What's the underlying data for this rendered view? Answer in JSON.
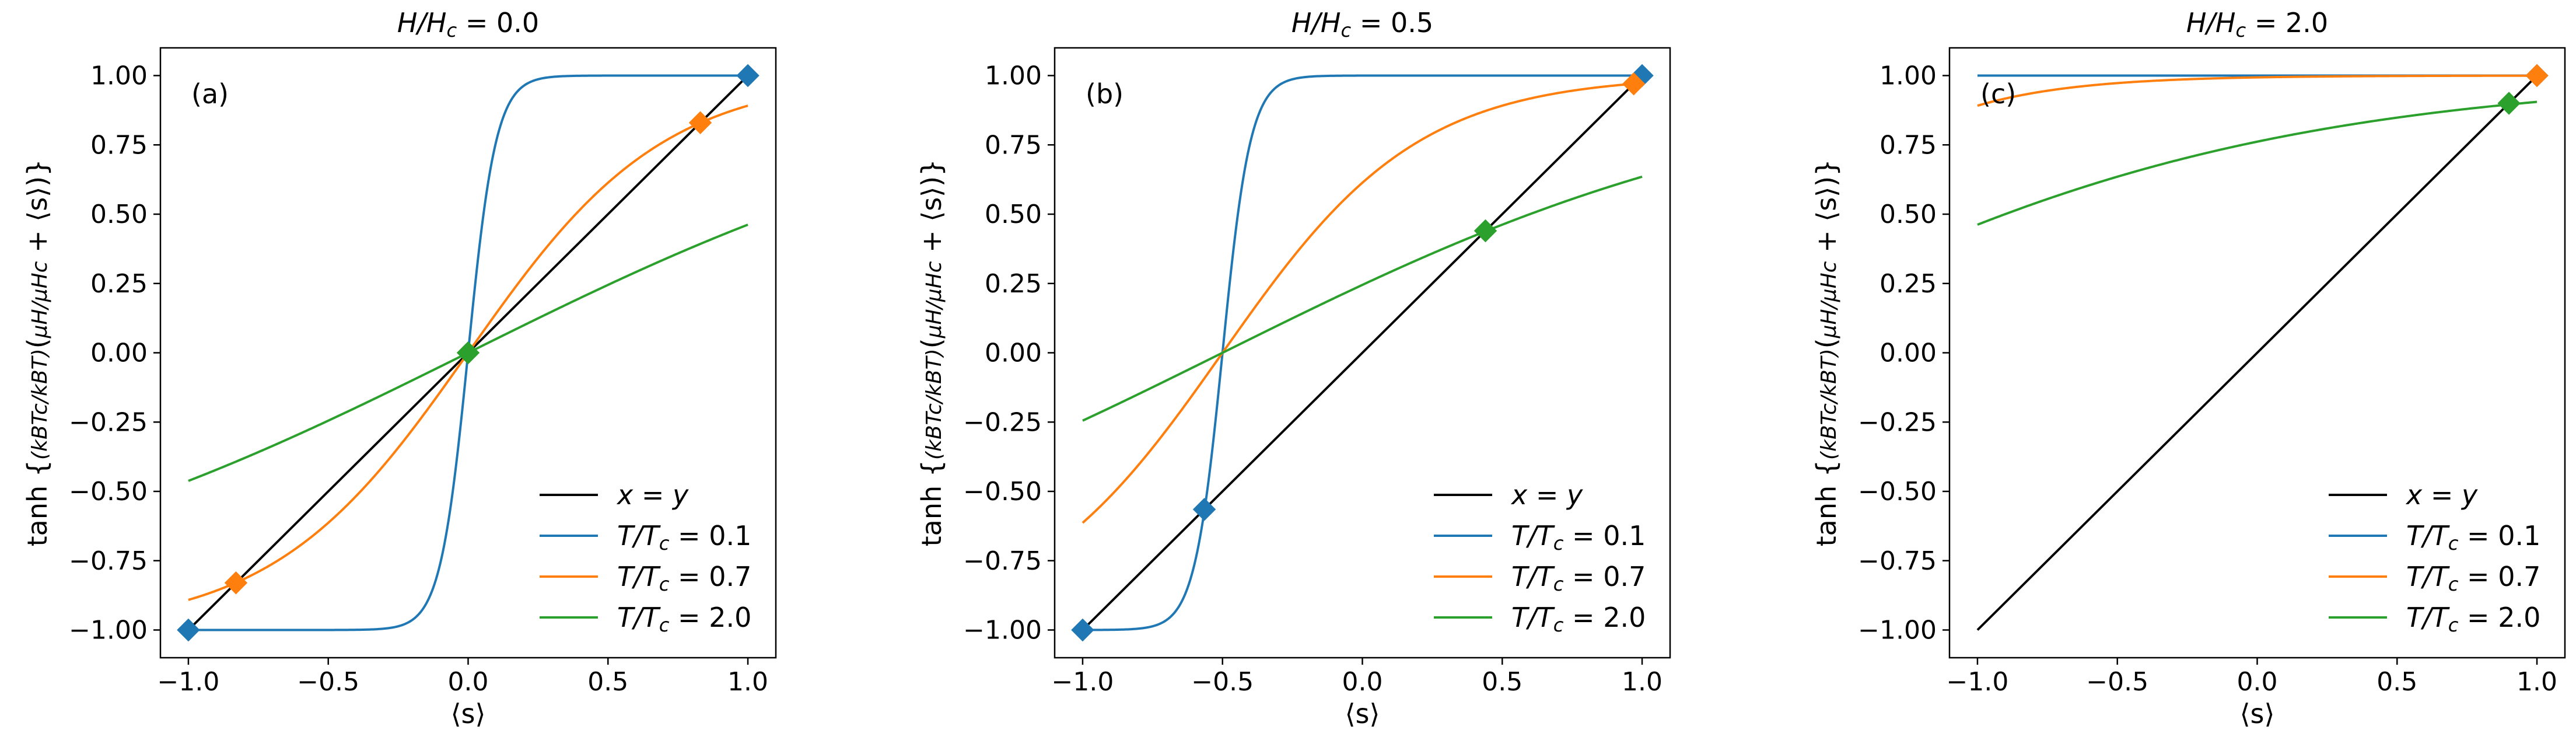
{
  "figure": {
    "panels": [
      {
        "title_prefix": "H/H",
        "title_sub": "c",
        "title_value": " = 0.0",
        "tag": "(a)",
        "hval": 0.0
      },
      {
        "title_prefix": "H/H",
        "title_sub": "c",
        "title_value": " = 0.5",
        "tag": "(b)",
        "hval": 0.5
      },
      {
        "title_prefix": "H/H",
        "title_sub": "c",
        "title_value": " = 2.0",
        "tag": "(c)",
        "hval": 2.0
      }
    ],
    "xlabel": "⟨s⟩",
    "ylabel": {
      "prefix": "tanh",
      "frac_outer_num": "kBTc",
      "frac_outer_den": "kBT",
      "frac_inner_num": "μH",
      "frac_inner_den": "μHc",
      "suffix": "+ ⟨s⟩"
    }
  },
  "chart_data": {
    "type": "line",
    "xlim": [
      -1.1,
      1.1
    ],
    "ylim": [
      -1.1,
      1.1
    ],
    "xticks": [
      -1.0,
      -0.5,
      0.0,
      0.5,
      1.0
    ],
    "yticks": [
      -1.0,
      -0.75,
      -0.5,
      -0.25,
      0.0,
      0.25,
      0.5,
      0.75,
      1.0
    ],
    "xtick_labels": [
      "−1.0",
      "−0.5",
      "0.0",
      "0.5",
      "1.0"
    ],
    "ytick_labels": [
      "−1.00",
      "−0.75",
      "−0.50",
      "−0.25",
      "0.00",
      "0.25",
      "0.50",
      "0.75",
      "1.00"
    ],
    "legend_position": "lower-right",
    "series": [
      {
        "key": "xy",
        "name": "x = y",
        "color": "#000000",
        "T": null
      },
      {
        "key": "t01",
        "name": "T/T",
        "name_sub": "c",
        "name_value": " = 0.1",
        "color": "#1f77b4",
        "T": 0.1
      },
      {
        "key": "t07",
        "name": "T/T",
        "name_sub": "c",
        "name_value": " = 0.7",
        "color": "#ff7f0e",
        "T": 0.7
      },
      {
        "key": "t20",
        "name": "T/T",
        "name_sub": "c",
        "name_value": " = 2.0",
        "color": "#2ca02c",
        "T": 2.0
      }
    ],
    "panels": [
      {
        "H": 0.0,
        "fixed_points": [
          {
            "series": "t01",
            "x": -1.0,
            "y": -1.0
          },
          {
            "series": "t01",
            "x": 1.0,
            "y": 1.0
          },
          {
            "series": "t07",
            "x": -0.83,
            "y": -0.83
          },
          {
            "series": "t07",
            "x": 0.83,
            "y": 0.83
          },
          {
            "series": "t20",
            "x": 0.0,
            "y": 0.0
          }
        ]
      },
      {
        "H": 0.5,
        "fixed_points": [
          {
            "series": "t01",
            "x": -1.0,
            "y": -1.0
          },
          {
            "series": "t01",
            "x": -0.565,
            "y": -0.565
          },
          {
            "series": "t01",
            "x": 1.0,
            "y": 1.0
          },
          {
            "series": "t07",
            "x": 0.97,
            "y": 0.97
          },
          {
            "series": "t20",
            "x": 0.44,
            "y": 0.44
          }
        ]
      },
      {
        "H": 2.0,
        "fixed_points": [
          {
            "series": "t01",
            "x": 1.0,
            "y": 1.0
          },
          {
            "series": "t07",
            "x": 1.0,
            "y": 1.0
          },
          {
            "series": "t20",
            "x": 0.9,
            "y": 0.9
          }
        ]
      }
    ]
  }
}
